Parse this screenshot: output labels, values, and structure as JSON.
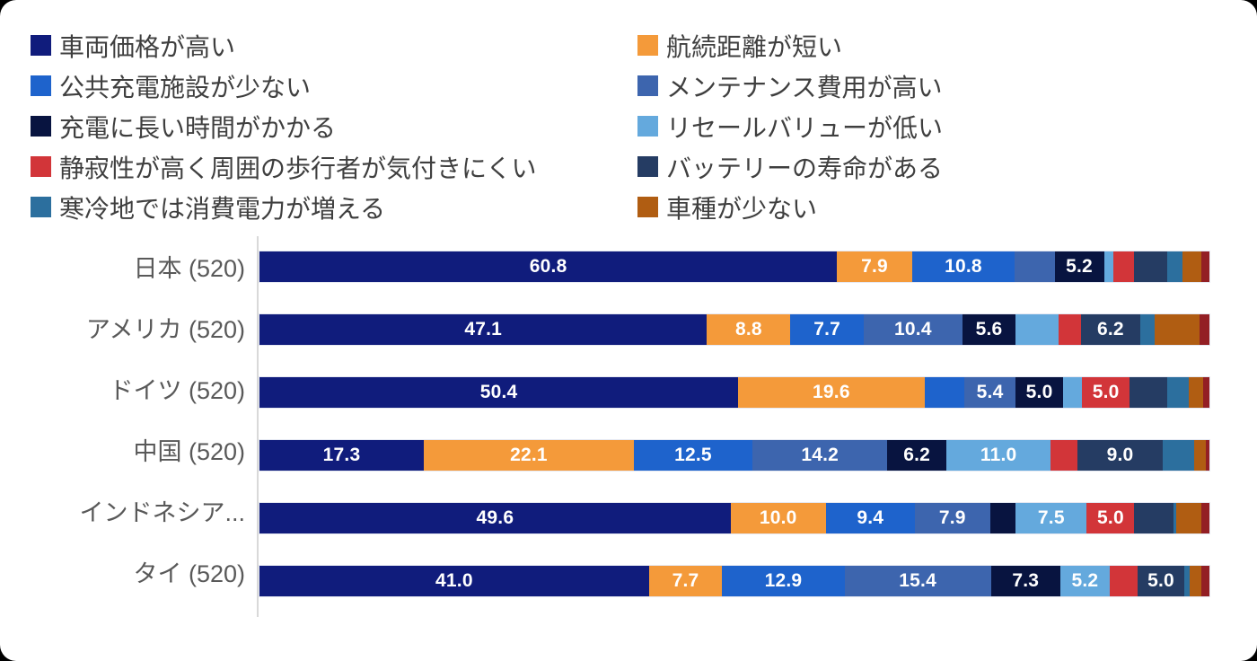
{
  "legend": {
    "column_series_indexes": [
      [
        0,
        2,
        4,
        6,
        8
      ],
      [
        1,
        3,
        5,
        7,
        9
      ]
    ]
  },
  "chart_data": {
    "type": "bar",
    "orientation": "horizontal",
    "stacked": true,
    "unit": "percent",
    "xlim": [
      0,
      100
    ],
    "grid": false,
    "legend_position": "top-two-columns",
    "axis_line_color": "#d9d9d9",
    "label_text_color": "#ffffff",
    "series": [
      {
        "label": "車両価格が高い",
        "color": "#101C7C"
      },
      {
        "label": "航続距離が短い",
        "color": "#F49A3A"
      },
      {
        "label": "公共充電施設が少ない",
        "color": "#1E63CC"
      },
      {
        "label": "メンテナンス費用が高い",
        "color": "#3D65AE"
      },
      {
        "label": "充電に長い時間がかかる",
        "color": "#081440"
      },
      {
        "label": "リセールバリューが低い",
        "color": "#64A9DD"
      },
      {
        "label": "静寂性が高く周囲の歩行者が気付きにくい",
        "color": "#D23539"
      },
      {
        "label": "バッテリーの寿命がある",
        "color": "#253C63"
      },
      {
        "label": "寒冷地では消費電力が増える",
        "color": "#2C6F9E"
      },
      {
        "label": "車種が少ない",
        "color": "#B05D12"
      },
      {
        "label": "",
        "color": "#931F24"
      }
    ],
    "categories": [
      "日本 (520)",
      "アメリカ (520)",
      "ドイツ (520)",
      "中国 (520)",
      "インドネシア...",
      "タイ (520)"
    ],
    "rows": [
      {
        "category": "日本 (520)",
        "values": [
          60.8,
          7.9,
          10.8,
          4.2,
          5.2,
          1.0,
          2.2,
          3.5,
          1.6,
          2.0,
          0.8
        ],
        "labels": [
          "60.8",
          "7.9",
          "10.8",
          null,
          "5.2",
          null,
          null,
          null,
          null,
          null,
          null
        ]
      },
      {
        "category": "アメリカ (520)",
        "values": [
          47.1,
          8.8,
          7.7,
          10.4,
          5.6,
          4.5,
          2.4,
          6.2,
          1.5,
          4.8,
          1.0
        ],
        "labels": [
          "47.1",
          "8.8",
          "7.7",
          "10.4",
          "5.6",
          null,
          null,
          "6.2",
          null,
          null,
          null
        ]
      },
      {
        "category": "ドイツ (520)",
        "values": [
          50.4,
          19.6,
          4.2,
          5.4,
          5.0,
          2.0,
          5.0,
          4.0,
          2.2,
          1.5,
          0.7
        ],
        "labels": [
          "50.4",
          "19.6",
          null,
          "5.4",
          "5.0",
          null,
          "5.0",
          null,
          null,
          null,
          null
        ]
      },
      {
        "category": "中国 (520)",
        "values": [
          17.3,
          22.1,
          12.5,
          14.2,
          6.2,
          11.0,
          2.8,
          9.0,
          3.3,
          1.2,
          0.4
        ],
        "labels": [
          "17.3",
          "22.1",
          "12.5",
          "14.2",
          "6.2",
          "11.0",
          null,
          "9.0",
          null,
          null,
          null
        ]
      },
      {
        "category": "インドネシア...",
        "values": [
          49.6,
          10.0,
          9.4,
          7.9,
          2.7,
          7.5,
          5.0,
          4.1,
          0.3,
          2.7,
          0.8
        ],
        "labels": [
          "49.6",
          "10.0",
          "9.4",
          "7.9",
          null,
          "7.5",
          "5.0",
          null,
          null,
          null,
          null
        ]
      },
      {
        "category": "タイ (520)",
        "values": [
          41.0,
          7.7,
          12.9,
          15.4,
          7.3,
          5.2,
          2.9,
          5.0,
          0.5,
          1.3,
          0.8
        ],
        "labels": [
          "41.0",
          "7.7",
          "12.9",
          "15.4",
          "7.3",
          "5.2",
          null,
          "5.0",
          null,
          null,
          null
        ]
      }
    ]
  }
}
